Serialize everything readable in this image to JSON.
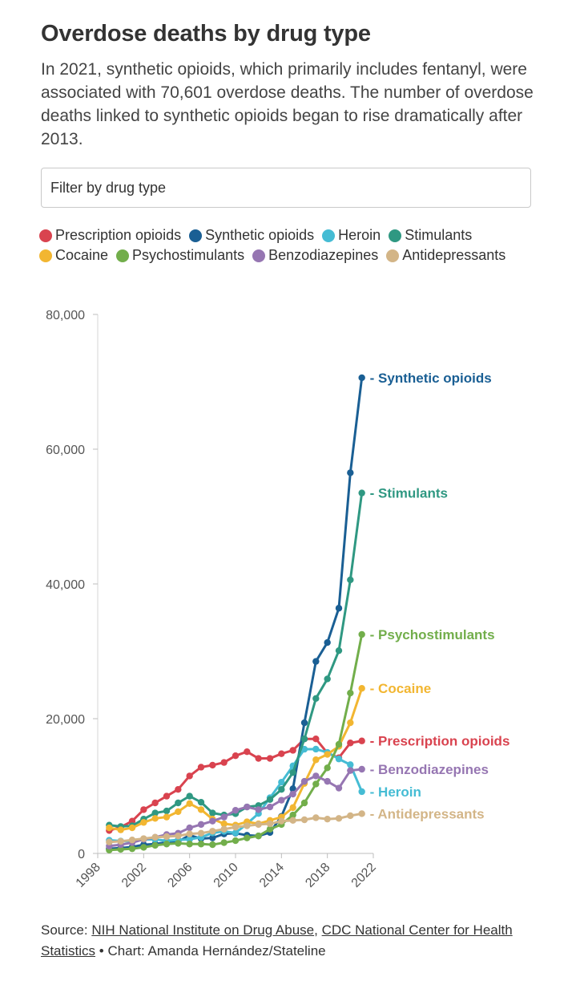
{
  "header": {
    "title": "Overdose deaths by drug type",
    "subtitle": "In 2021, synthetic opioids, which primarily includes fentanyl, were associated with 70,601 overdose deaths. The number of overdose deaths linked to synthetic opioids began to rise dramatically after 2013."
  },
  "filter": {
    "placeholder": "Filter by drug type"
  },
  "source": {
    "prefix": "Source: ",
    "link1": "NIH National Institute on Drug Abuse",
    "sep1": ", ",
    "link2": "CDC National Center for Health Statistics",
    "sep2": " • ",
    "credit": "Chart: Amanda Hernández/Stateline"
  },
  "chart_data": {
    "type": "line",
    "title": "",
    "xlabel": "",
    "ylabel": "",
    "x": [
      1999,
      2000,
      2001,
      2002,
      2003,
      2004,
      2005,
      2006,
      2007,
      2008,
      2009,
      2010,
      2011,
      2012,
      2013,
      2014,
      2015,
      2016,
      2017,
      2018,
      2019,
      2020,
      2021
    ],
    "xlim": [
      1998,
      2022
    ],
    "ylim": [
      0,
      80000
    ],
    "xticks": [
      "1998",
      "2002",
      "2006",
      "2010",
      "2014",
      "2018",
      "2022"
    ],
    "yticks": [
      "0",
      "20,000",
      "40,000",
      "60,000",
      "80,000"
    ],
    "grid": false,
    "legend_position": "top",
    "series": [
      {
        "name": "Prescription opioids",
        "color": "#d9434f",
        "values": [
          3400,
          3900,
          4800,
          6500,
          7500,
          8500,
          9500,
          11500,
          12800,
          13100,
          13500,
          14500,
          15100,
          14100,
          14100,
          14800,
          15300,
          17000,
          17000,
          14900,
          14200,
          16400,
          16700
        ]
      },
      {
        "name": "Synthetic opioids",
        "color": "#1a5f94",
        "values": [
          700,
          800,
          950,
          1300,
          1400,
          1650,
          1750,
          2700,
          2200,
          2300,
          2900,
          3000,
          2700,
          2600,
          3100,
          5500,
          9600,
          19400,
          28500,
          31300,
          36400,
          56500,
          70600
        ]
      },
      {
        "name": "Heroin",
        "color": "#45bcd4",
        "values": [
          1960,
          1840,
          1780,
          2090,
          2080,
          1880,
          2010,
          2090,
          2400,
          3040,
          3280,
          3040,
          4400,
          5930,
          8260,
          10570,
          12990,
          15470,
          15480,
          14990,
          14020,
          13170,
          9170
        ]
      },
      {
        "name": "Stimulants",
        "color": "#2f9882",
        "values": [
          4200,
          4000,
          4100,
          5100,
          6000,
          6300,
          7500,
          8500,
          7600,
          6000,
          5700,
          5900,
          6900,
          7100,
          8000,
          9500,
          12000,
          17000,
          23000,
          25900,
          30100,
          40600,
          53500
        ]
      },
      {
        "name": "Cocaine",
        "color": "#f2b631",
        "values": [
          3800,
          3500,
          3800,
          4600,
          5200,
          5400,
          6200,
          7400,
          6500,
          5100,
          4400,
          4200,
          4700,
          4400,
          4900,
          5400,
          6800,
          10400,
          13900,
          14700,
          15900,
          19400,
          24500
        ]
      },
      {
        "name": "Psychostimulants",
        "color": "#72ae4b",
        "values": [
          500,
          600,
          700,
          900,
          1200,
          1400,
          1500,
          1400,
          1400,
          1300,
          1600,
          1900,
          2300,
          2600,
          3600,
          4300,
          5700,
          7500,
          10300,
          12700,
          16200,
          23800,
          32500
        ]
      },
      {
        "name": "Benzodiazepines",
        "color": "#9676b2",
        "values": [
          1100,
          1300,
          1600,
          2100,
          2400,
          2800,
          3000,
          3800,
          4300,
          4800,
          5400,
          6400,
          6900,
          6500,
          6900,
          7900,
          8800,
          10700,
          11500,
          10700,
          9700,
          12300,
          12500
        ]
      },
      {
        "name": "Antidepressants",
        "color": "#d3b587",
        "values": [
          1700,
          1800,
          2000,
          2200,
          2400,
          2500,
          2600,
          2900,
          3000,
          3300,
          3600,
          3900,
          4100,
          4300,
          4400,
          4800,
          4900,
          5000,
          5300,
          5100,
          5200,
          5600,
          5900
        ]
      }
    ],
    "end_labels": [
      {
        "series": "Synthetic opioids",
        "text": "Synthetic opioids",
        "color": "#1a5f94"
      },
      {
        "series": "Stimulants",
        "text": "Stimulants",
        "color": "#2f9882"
      },
      {
        "series": "Psychostimulants",
        "text": "Psychostimulants",
        "color": "#72ae4b"
      },
      {
        "series": "Cocaine",
        "text": "Cocaine",
        "color": "#f2b631"
      },
      {
        "series": "Prescription opioids",
        "text": "Prescription opioids",
        "color": "#d9434f"
      },
      {
        "series": "Benzodiazepines",
        "text": "Benzodiazepines",
        "color": "#9676b2"
      },
      {
        "series": "Heroin",
        "text": "Heroin",
        "color": "#45bcd4"
      },
      {
        "series": "Antidepressants",
        "text": "Antidepressants",
        "color": "#d3b587"
      }
    ]
  }
}
